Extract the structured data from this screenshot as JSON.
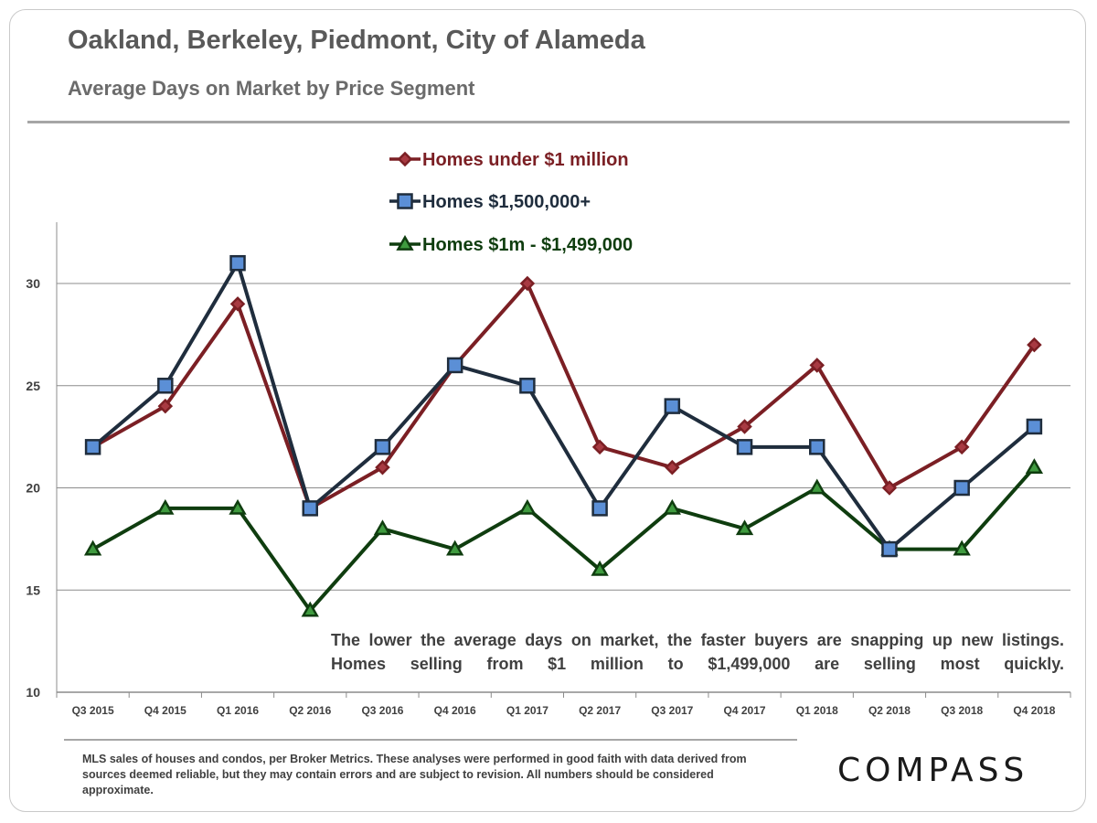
{
  "header": {
    "title": "Oakland, Berkeley, Piedmont, City of Alameda",
    "subtitle": "Average Days on Market by Price Segment"
  },
  "annotation": "The lower the average days on market, the faster buyers are snapping up new listings. Homes selling from $1 million to $1,499,000 are selling most quickly.",
  "footnote": "MLS sales of houses and condos, per Broker Metrics. These analyses were performed in good faith with data derived from sources deemed reliable, but they may contain errors and are subject to revision. All numbers should be considered approximate.",
  "brand": {
    "logo_text": "COMPASS"
  },
  "colors": {
    "under_1m": "#7b1f24",
    "under_1m_marker": "#a83a42",
    "over_1_5m": "#1f2d3d",
    "over_1_5m_marker": "#5b8fd6",
    "mid": "#0f3d0f",
    "mid_marker": "#3f9b3f",
    "grid": "#8c8c8c"
  },
  "chart_data": {
    "type": "line",
    "title": "Average Days on Market by Price Segment",
    "xlabel": "",
    "ylabel": "",
    "ylim": [
      10,
      33
    ],
    "yticks": [
      10,
      15,
      20,
      25,
      30
    ],
    "grid": true,
    "legend_position": "top-center",
    "categories": [
      "Q3 2015",
      "Q4 2015",
      "Q1 2016",
      "Q2 2016",
      "Q3 2016",
      "Q4 2016",
      "Q1 2017",
      "Q2 2017",
      "Q3 2017",
      "Q4 2017",
      "Q1 2018",
      "Q2 2018",
      "Q3 2018",
      "Q4 2018"
    ],
    "series": [
      {
        "name": "Homes under $1 million",
        "marker": "diamond",
        "values": [
          22,
          24,
          29,
          19,
          21,
          26,
          30,
          22,
          21,
          23,
          26,
          20,
          22,
          27
        ]
      },
      {
        "name": "Homes $1,500,000+",
        "marker": "square",
        "values": [
          22,
          25,
          31,
          19,
          22,
          26,
          25,
          19,
          24,
          22,
          22,
          17,
          20,
          23
        ]
      },
      {
        "name": "Homes $1m - $1,499,000",
        "marker": "triangle",
        "values": [
          17,
          19,
          19,
          14,
          18,
          17,
          19,
          16,
          19,
          18,
          20,
          17,
          17,
          21
        ]
      }
    ]
  }
}
